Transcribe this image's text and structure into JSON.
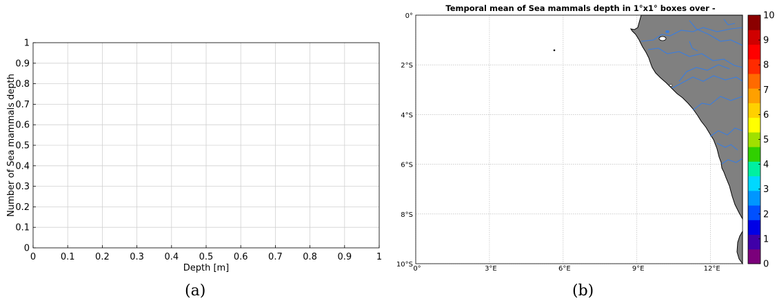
{
  "chart_data": [
    {
      "type": "bar",
      "panel_label": "(a)",
      "xlabel": "Depth [m]",
      "ylabel": "Number of Sea mammals depth",
      "xlim": [
        0,
        1
      ],
      "ylim": [
        0,
        1
      ],
      "xticks": [
        "0",
        "0.1",
        "0.2",
        "0.3",
        "0.4",
        "0.5",
        "0.6",
        "0.7",
        "0.8",
        "0.9",
        "1"
      ],
      "yticks": [
        "0",
        "0.1",
        "0.2",
        "0.3",
        "0.4",
        "0.5",
        "0.6",
        "0.7",
        "0.8",
        "0.9",
        "1"
      ],
      "grid": true,
      "series": [],
      "categories": [],
      "values": []
    },
    {
      "type": "heatmap",
      "panel_label": "(b)",
      "title": "Temporal mean of Sea mammals depth in 1°x1° boxes over -",
      "lon_range": [
        0,
        13.3
      ],
      "lat_range": [
        -10,
        0
      ],
      "lon_ticks": [
        {
          "value": 0,
          "label": "0°"
        },
        {
          "value": 3,
          "label": "3°E"
        },
        {
          "value": 6,
          "label": "6°E"
        },
        {
          "value": 9,
          "label": "9°E"
        },
        {
          "value": 12,
          "label": "12°E"
        }
      ],
      "lat_ticks": [
        {
          "value": 0,
          "label": "0°"
        },
        {
          "value": -2,
          "label": "2°S"
        },
        {
          "value": -4,
          "label": "4°S"
        },
        {
          "value": -6,
          "label": "6°S"
        },
        {
          "value": -8,
          "label": "8°S"
        },
        {
          "value": -10,
          "label": "10°S"
        }
      ],
      "grid": true,
      "colorbar": {
        "min": 0,
        "max": 10,
        "ticks": [
          "0",
          "1",
          "2",
          "3",
          "4",
          "5",
          "6",
          "7",
          "8",
          "9",
          "10"
        ],
        "colors": [
          "#7b007b",
          "#3f00a8",
          "#0000e6",
          "#0050ff",
          "#0096ff",
          "#00d8ff",
          "#00f0a0",
          "#30d000",
          "#a0e000",
          "#ffff00",
          "#ffd000",
          "#ffa000",
          "#ff6a00",
          "#ff2a00",
          "#ff0000",
          "#d00000",
          "#8b0000"
        ]
      },
      "land_color": "#808080",
      "river_color": "#3b7ddd",
      "values": []
    }
  ]
}
